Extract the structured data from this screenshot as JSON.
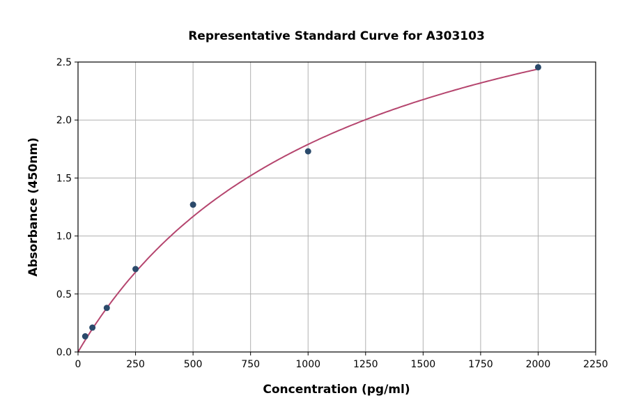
{
  "chart_data": {
    "type": "scatter",
    "title": "Representative Standard Curve for A303103",
    "xlabel": "Concentration (pg/ml)",
    "ylabel": "Absorbance (450nm)",
    "xlim": [
      0,
      2250
    ],
    "ylim": [
      0,
      2.5
    ],
    "xticks": [
      0,
      250,
      500,
      750,
      1000,
      1250,
      1500,
      1750,
      2000,
      2250
    ],
    "yticks": [
      "0.0",
      "0.5",
      "1.0",
      "1.5",
      "2.0",
      "2.5"
    ],
    "grid": true,
    "points": [
      {
        "x": 31.25,
        "y": 0.135
      },
      {
        "x": 62.5,
        "y": 0.21
      },
      {
        "x": 125,
        "y": 0.38
      },
      {
        "x": 250,
        "y": 0.715
      },
      {
        "x": 500,
        "y": 1.27
      },
      {
        "x": 1000,
        "y": 1.73
      },
      {
        "x": 2000,
        "y": 2.455
      }
    ],
    "fit_curve": {
      "model": "y = a*x/(b+x)",
      "a": 3.83,
      "b": 1140,
      "x_range": [
        0,
        2000
      ]
    },
    "colors": {
      "points": "#2b4a6b",
      "curve": "#b5456e",
      "grid": "#b0b0b0"
    }
  }
}
